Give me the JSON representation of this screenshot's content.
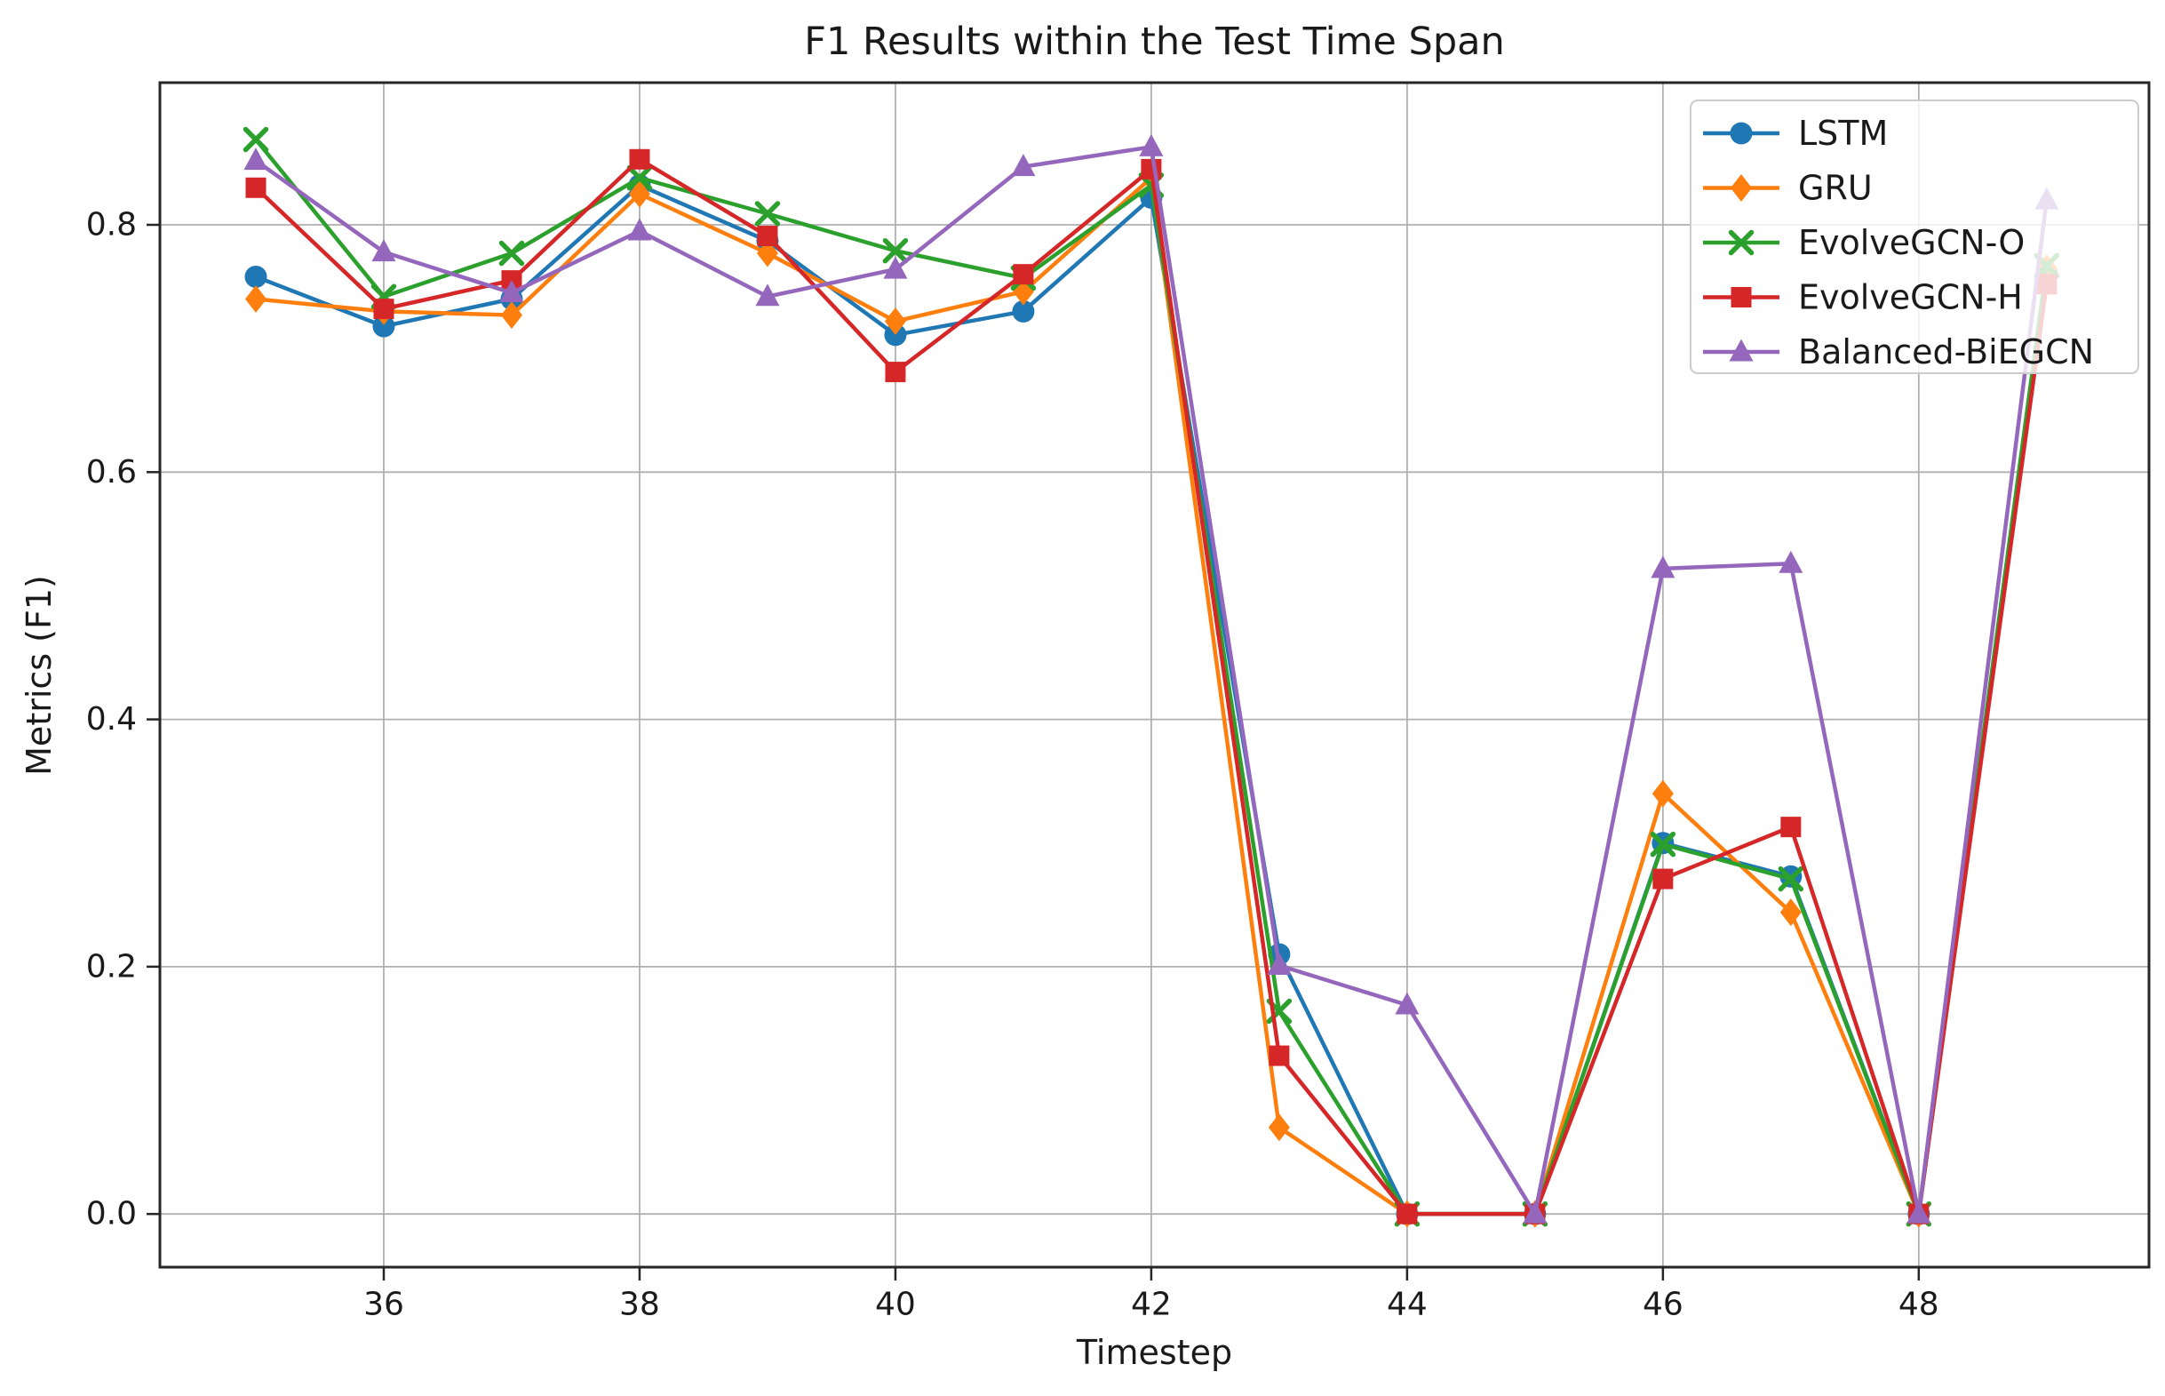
{
  "figure": {
    "title": "F1 Results within the Test Time Span",
    "xlabel": "Timestep",
    "ylabel": "Metrics (F1)"
  },
  "chart_data": {
    "type": "line",
    "title": "F1 Results within the Test Time Span",
    "xlabel": "Timestep",
    "ylabel": "Metrics (F1)",
    "x": [
      35,
      36,
      37,
      38,
      39,
      40,
      41,
      42,
      43,
      44,
      45,
      46,
      47,
      48,
      49
    ],
    "xticks": [
      36,
      38,
      40,
      42,
      44,
      46,
      48
    ],
    "yticks": [
      0.0,
      0.2,
      0.4,
      0.6,
      0.8
    ],
    "xlim": [
      34.25,
      49.8
    ],
    "ylim": [
      -0.043,
      0.915
    ],
    "grid": true,
    "grid_color": "#b0b0b0",
    "spine_color": "#262626",
    "legend_position": "upper right",
    "series": [
      {
        "name": "LSTM",
        "color": "#1f77b4",
        "marker": "circle",
        "values": [
          0.758,
          0.718,
          0.74,
          0.832,
          0.787,
          0.711,
          0.73,
          0.822,
          0.21,
          0.0,
          0.0,
          0.3,
          0.273,
          0.0,
          0.76
        ]
      },
      {
        "name": "GRU",
        "color": "#ff7f0e",
        "marker": "diamond",
        "values": [
          0.74,
          0.73,
          0.727,
          0.825,
          0.777,
          0.722,
          0.746,
          0.838,
          0.07,
          0.0,
          0.0,
          0.34,
          0.244,
          0.0,
          0.765
        ]
      },
      {
        "name": "EvolveGCN-O",
        "color": "#2ca02c",
        "marker": "x",
        "values": [
          0.869,
          0.742,
          0.777,
          0.838,
          0.809,
          0.779,
          0.757,
          0.832,
          0.164,
          0.0,
          0.0,
          0.299,
          0.271,
          0.0,
          0.767
        ]
      },
      {
        "name": "EvolveGCN-H",
        "color": "#d62728",
        "marker": "square",
        "values": [
          0.83,
          0.732,
          0.755,
          0.853,
          0.791,
          0.681,
          0.76,
          0.845,
          0.128,
          0.0,
          0.0,
          0.271,
          0.313,
          0.0,
          0.752
        ]
      },
      {
        "name": "Balanced-BiEGCN",
        "color": "#9467bd",
        "marker": "triangle-up",
        "values": [
          0.852,
          0.778,
          0.745,
          0.795,
          0.742,
          0.764,
          0.847,
          0.863,
          0.201,
          0.169,
          0.0,
          0.522,
          0.526,
          0.0,
          0.82
        ]
      }
    ]
  }
}
